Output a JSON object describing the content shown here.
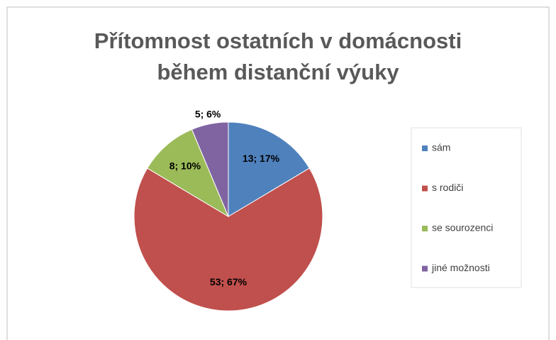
{
  "chart_data": {
    "type": "pie",
    "title": [
      "Přítomnost ostatních v domácnosti",
      "během distanční výuky"
    ],
    "categories": [
      "sám",
      "s rodiči",
      "se sourozenci",
      "jiné možnosti"
    ],
    "values": [
      13,
      53,
      8,
      5
    ],
    "value_labels": [
      "13; 17%",
      "53; 67%",
      "8; 10%",
      "5; 6%"
    ],
    "colors": [
      "#4f81bd",
      "#c0504d",
      "#9bbb59",
      "#8064a2"
    ],
    "legend": "right"
  }
}
